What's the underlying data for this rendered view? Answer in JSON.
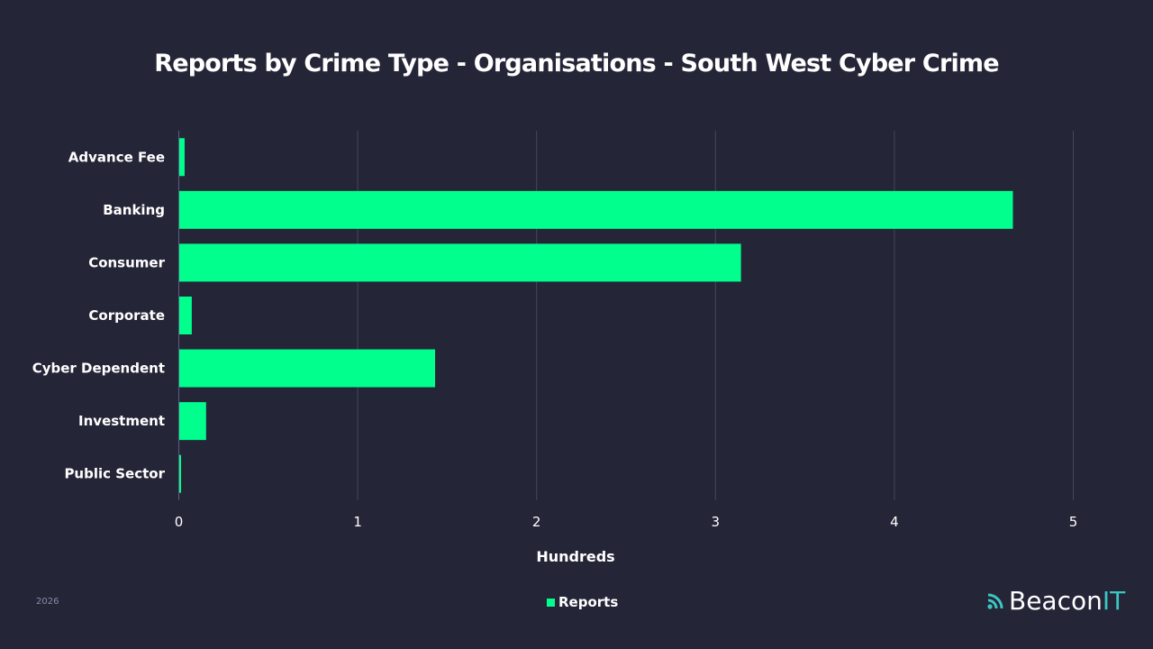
{
  "chart_data": {
    "type": "bar",
    "orientation": "horizontal",
    "title": "Reports by Crime Type - Organisations - South West Cyber Crime",
    "xlabel": "Hundreds",
    "ylabel": "",
    "categories": [
      "Advance Fee",
      "Banking",
      "Consumer",
      "Corporate",
      "Cyber Dependent",
      "Investment",
      "Public Sector"
    ],
    "series": [
      {
        "name": "Reports",
        "values": [
          0.03,
          4.66,
          3.14,
          0.07,
          1.43,
          0.15,
          0.01
        ]
      }
    ],
    "xlim": [
      0,
      5
    ],
    "xticks": [
      "0",
      "1",
      "2",
      "3",
      "4",
      "5"
    ],
    "grid": true,
    "legend": "bottom-center"
  },
  "footer": {
    "year": "2026",
    "logo_main": "Beacon",
    "logo_accent": "IT"
  },
  "colors": {
    "bar": "#00ff8c",
    "grid": "#45455f",
    "background": "#252538",
    "accent": "#3cc6c0"
  }
}
